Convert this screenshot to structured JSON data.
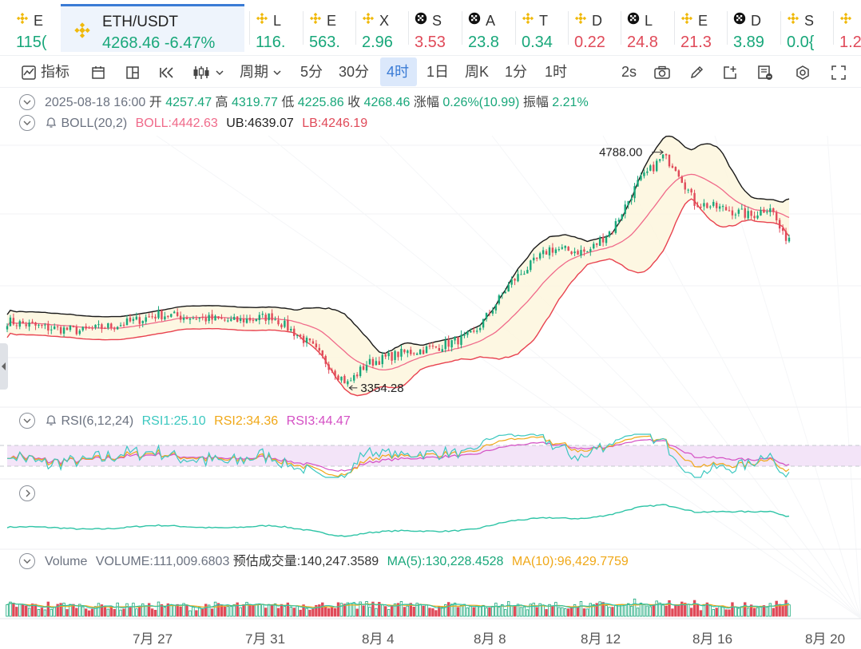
{
  "ticker_bar": {
    "items": [
      {
        "symbol": "E",
        "price": "115(",
        "dir": "up",
        "icon": "binance-icon"
      },
      {
        "symbol": "L",
        "price": "116.",
        "dir": "up",
        "icon": "binance-icon"
      },
      {
        "symbol": "E",
        "price": "563.",
        "dir": "up",
        "icon": "binance-icon"
      },
      {
        "symbol": "X",
        "price": "2.96",
        "dir": "up",
        "icon": "binance-icon"
      },
      {
        "symbol": "S",
        "price": "3.53",
        "dir": "down",
        "icon": "checker-icon"
      },
      {
        "symbol": "A",
        "price": "23.8",
        "dir": "up",
        "icon": "checker-icon"
      },
      {
        "symbol": "T",
        "price": "0.34",
        "dir": "up",
        "icon": "binance-icon"
      },
      {
        "symbol": "D",
        "price": "0.22",
        "dir": "down",
        "icon": "binance-icon"
      },
      {
        "symbol": "L",
        "price": "24.8",
        "dir": "down",
        "icon": "checker-icon"
      },
      {
        "symbol": "E",
        "price": "21.3",
        "dir": "down",
        "icon": "binance-icon"
      },
      {
        "symbol": "D",
        "price": "3.89",
        "dir": "up",
        "icon": "checker-icon"
      },
      {
        "symbol": "S",
        "price": "0.0{",
        "dir": "up",
        "icon": "binance-icon"
      },
      {
        "symbol": "",
        "price": "1.2",
        "dir": "down",
        "icon": "binance-icon"
      }
    ],
    "active": {
      "symbol": "ETH/USDT",
      "price": "4268.46",
      "change": "-6.47%",
      "icon": "binance-icon"
    }
  },
  "toolbar": {
    "indicators": "指标",
    "period": "周期",
    "intervals": [
      "5分",
      "30分",
      "4时",
      "1日",
      "周K",
      "1分",
      "1时"
    ],
    "active_interval": "4时",
    "refresh": "2s"
  },
  "ohlc": {
    "datetime": "2025-08-18 16:00",
    "open_label": "开",
    "open": "4257.47",
    "high_label": "高",
    "high": "4319.77",
    "low_label": "低",
    "low": "4225.86",
    "close_label": "收",
    "close": "4268.46",
    "change_label": "涨幅",
    "change": "0.26%(10.99)",
    "amp_label": "振幅",
    "amp": "2.21%"
  },
  "boll": {
    "name": "BOLL(20,2)",
    "mid": "BOLL:4442.63",
    "ub": "UB:4639.07",
    "lb": "LB:4246.19"
  },
  "rsi": {
    "name": "RSI(6,12,24)",
    "rsi1": "RSI1:25.10",
    "rsi2": "RSI2:34.36",
    "rsi3": "RSI3:44.47"
  },
  "volume": {
    "name": "Volume",
    "value": "VOLUME:111,009.6803",
    "estimate": "预估成交量:140,247.3589",
    "ma5": "MA(5):130,228.4528",
    "ma10": "MA(10):96,429.7759"
  },
  "colors": {
    "up": "#18a77a",
    "down": "#e04a59",
    "boll_mid": "#f06a8a",
    "boll_band": "#1a1a1a",
    "rsi1": "#3cc8c0",
    "rsi2": "#f0a818",
    "rsi3": "#d44fc4",
    "accent": "#3a7bd5"
  },
  "chart_data": {
    "type": "candlestick",
    "high_annotation": "4788.00",
    "low_annotation": "3354.28",
    "x_ticks": [
      "7月 27",
      "7月 31",
      "8月 4",
      "8月 8",
      "8月 12",
      "8月 16",
      "8月 20"
    ],
    "price_anchors": [
      [
        0,
        3760
      ],
      [
        12,
        3720
      ],
      [
        24,
        3700
      ],
      [
        36,
        3740
      ],
      [
        48,
        3800
      ],
      [
        60,
        3780
      ],
      [
        72,
        3760
      ],
      [
        84,
        3790
      ],
      [
        96,
        3620
      ],
      [
        104,
        3450
      ],
      [
        108,
        3380
      ],
      [
        114,
        3500
      ],
      [
        124,
        3560
      ],
      [
        136,
        3600
      ],
      [
        148,
        3680
      ],
      [
        160,
        4000
      ],
      [
        172,
        4200
      ],
      [
        184,
        4180
      ],
      [
        192,
        4320
      ],
      [
        200,
        4600
      ],
      [
        208,
        4760
      ],
      [
        212,
        4700
      ],
      [
        218,
        4480
      ],
      [
        228,
        4440
      ],
      [
        236,
        4400
      ],
      [
        242,
        4460
      ],
      [
        246,
        4280
      ],
      [
        248,
        4268
      ]
    ]
  }
}
